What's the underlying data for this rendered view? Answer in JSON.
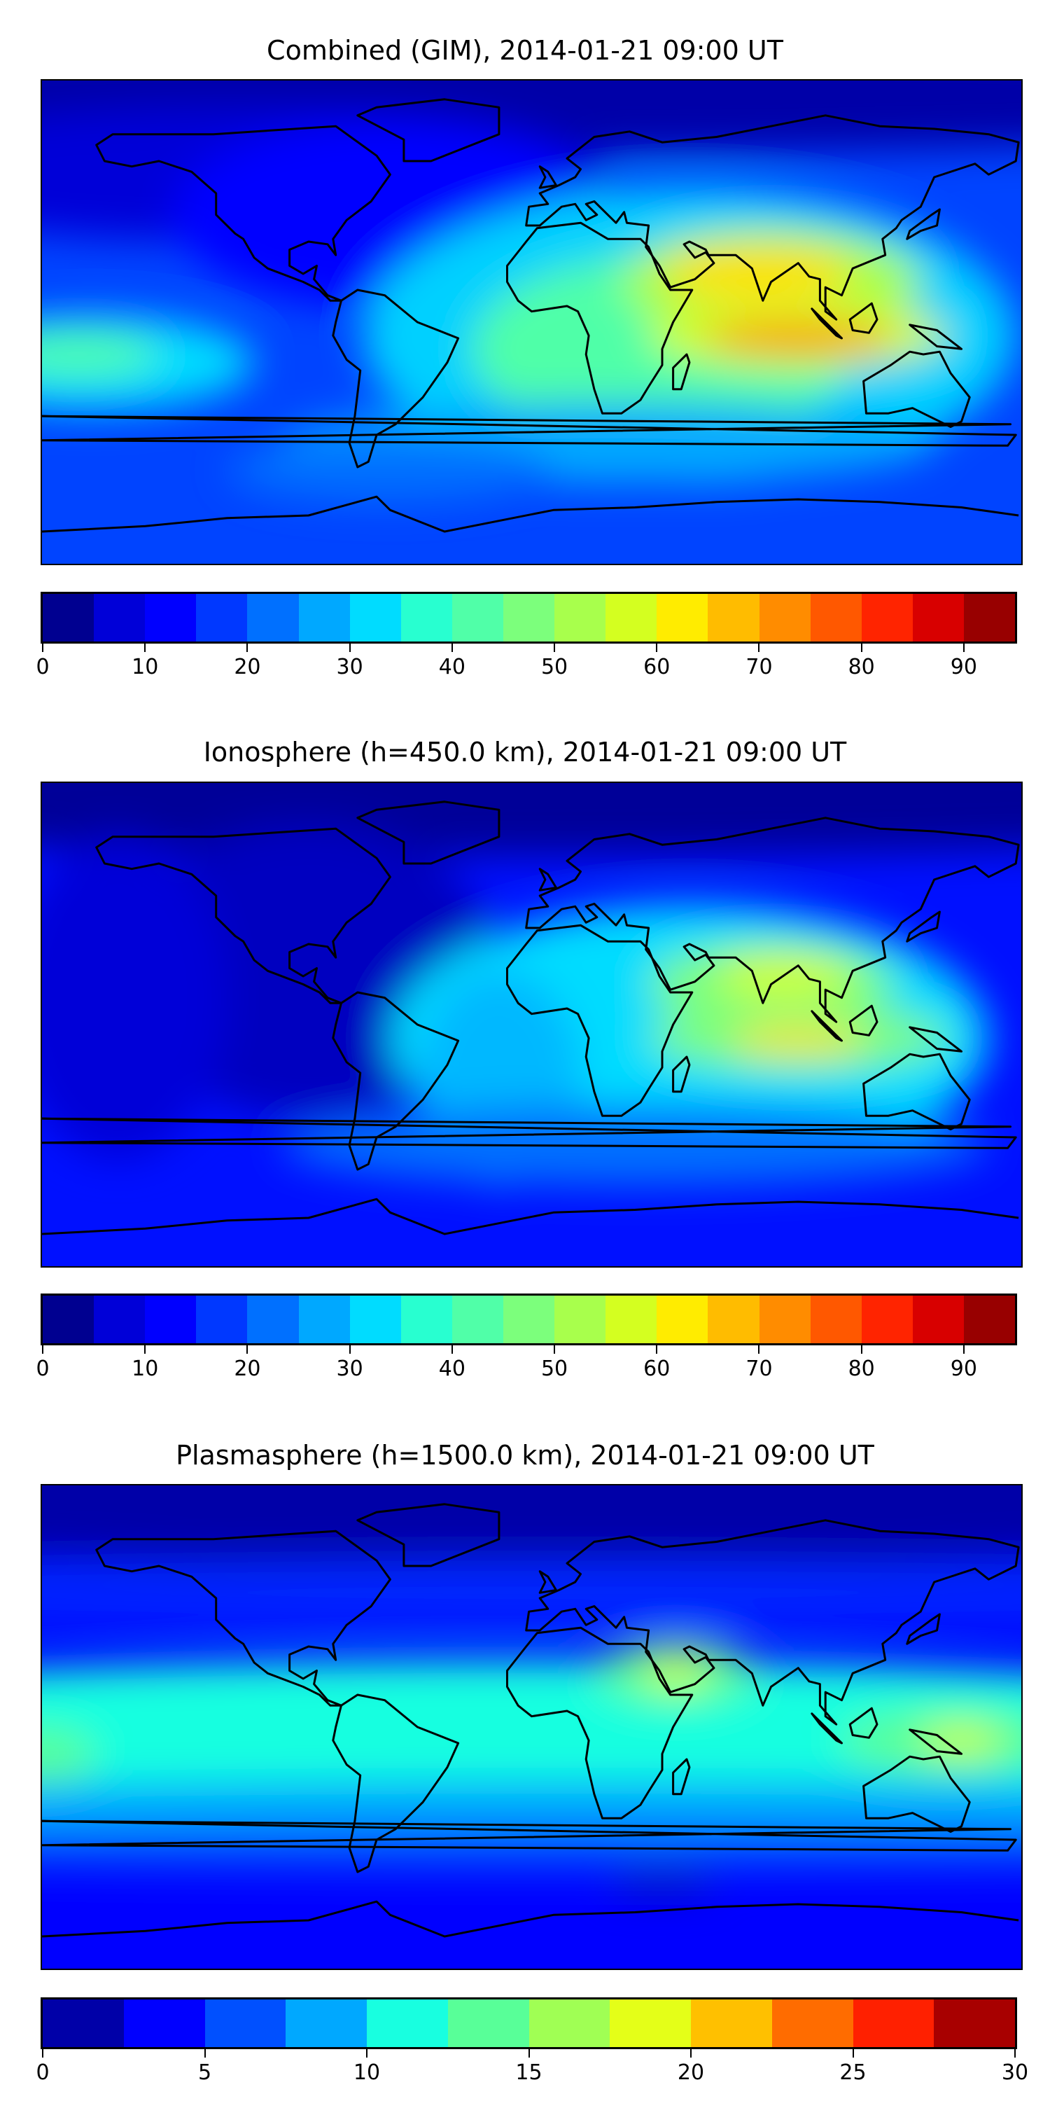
{
  "chart_data": [
    {
      "type": "heatmap",
      "title": "Combined (GIM), 2014-01-21 09:00 UT",
      "colorbar": {
        "range": [
          0,
          95
        ],
        "step": 5,
        "ticks": [
          "0",
          "10",
          "20",
          "30",
          "40",
          "50",
          "60",
          "70",
          "80",
          "90"
        ],
        "tick_values": [
          0,
          10,
          20,
          30,
          40,
          50,
          60,
          70,
          80,
          90
        ],
        "colors": [
          "#000090",
          "#0000d8",
          "#0000ff",
          "#0038ff",
          "#0070ff",
          "#00a8ff",
          "#00dcff",
          "#28ffd0",
          "#50ffa8",
          "#7cff7c",
          "#a8ff4c",
          "#d4ff20",
          "#ffec00",
          "#ffbc00",
          "#ff8c00",
          "#ff5800",
          "#ff2400",
          "#d80000",
          "#980000"
        ]
      }
    },
    {
      "type": "heatmap",
      "title": "Ionosphere  (h=450.0 km), 2014-01-21 09:00 UT",
      "colorbar": {
        "range": [
          0,
          95
        ],
        "step": 5,
        "ticks": [
          "0",
          "10",
          "20",
          "30",
          "40",
          "50",
          "60",
          "70",
          "80",
          "90"
        ],
        "tick_values": [
          0,
          10,
          20,
          30,
          40,
          50,
          60,
          70,
          80,
          90
        ],
        "colors": [
          "#000090",
          "#0000d8",
          "#0000ff",
          "#0038ff",
          "#0070ff",
          "#00a8ff",
          "#00dcff",
          "#28ffd0",
          "#50ffa8",
          "#7cff7c",
          "#a8ff4c",
          "#d4ff20",
          "#ffec00",
          "#ffbc00",
          "#ff8c00",
          "#ff5800",
          "#ff2400",
          "#d80000",
          "#980000"
        ]
      }
    },
    {
      "type": "heatmap",
      "title": "Plasmasphere (h=1500.0 km), 2014-01-21 09:00 UT",
      "colorbar": {
        "range": [
          0,
          30
        ],
        "step": 2.5,
        "ticks": [
          "0",
          "5",
          "10",
          "15",
          "20",
          "25",
          "30"
        ],
        "tick_values": [
          0,
          5,
          10,
          15,
          20,
          25,
          30
        ],
        "colors": [
          "#0000a8",
          "#0000ff",
          "#0050ff",
          "#00a8ff",
          "#18ffe0",
          "#58ff98",
          "#a0ff54",
          "#e4ff18",
          "#ffc000",
          "#ff6c00",
          "#ff2000",
          "#a80000"
        ]
      }
    }
  ]
}
